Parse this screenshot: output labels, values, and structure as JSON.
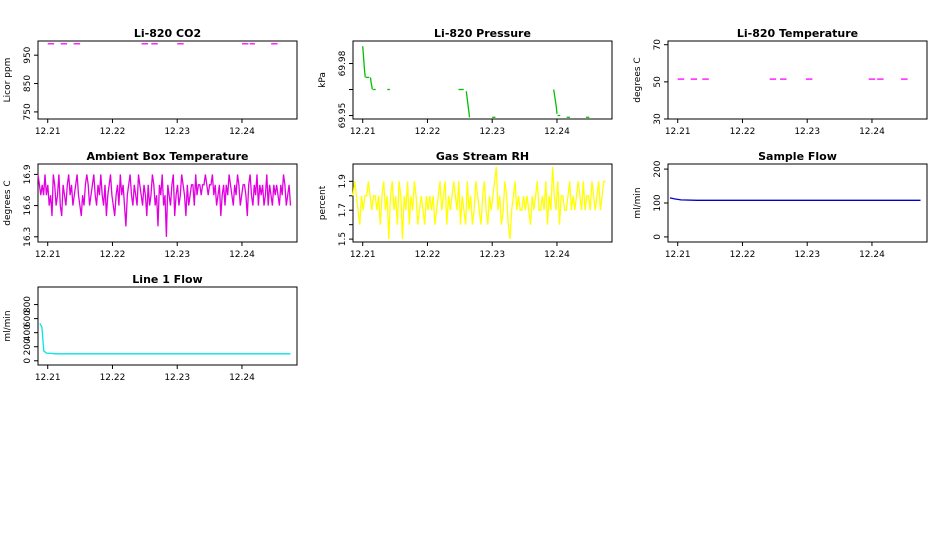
{
  "chart_data": [
    {
      "type": "line",
      "title": "Li-820 CO2",
      "ylabel": "Licor ppm",
      "ylim": [
        725,
        1000
      ],
      "yticks": [
        750,
        850,
        950
      ],
      "xlim": [
        12.2085,
        12.2485
      ],
      "xticks": [
        "12.21",
        "12.22",
        "12.23",
        "12.24"
      ],
      "color": "#ff00ff",
      "series": [
        {
          "segments": [
            [
              [
                12.21,
                990
              ],
              [
                12.211,
                990
              ]
            ],
            [
              [
                12.212,
                990
              ],
              [
                12.213,
                990
              ]
            ],
            [
              [
                12.214,
                990
              ],
              [
                12.215,
                990
              ]
            ],
            [
              [
                12.2245,
                990
              ],
              [
                12.2255,
                990
              ]
            ],
            [
              [
                12.226,
                990
              ],
              [
                12.227,
                990
              ]
            ],
            [
              [
                12.23,
                990
              ],
              [
                12.231,
                990
              ]
            ],
            [
              [
                12.24,
                990
              ],
              [
                12.241,
                990
              ]
            ],
            [
              [
                12.2412,
                990
              ],
              [
                12.242,
                990
              ]
            ],
            [
              [
                12.2445,
                990
              ],
              [
                12.2455,
                990
              ]
            ]
          ]
        }
      ]
    },
    {
      "type": "line",
      "title": "Li-820 Pressure",
      "ylabel": "kPa",
      "ylim": [
        69.948,
        69.993
      ],
      "yticks": [
        69.95,
        69.98
      ],
      "ytick_labels": [
        "69.95",
        "69.98"
      ],
      "mid_tick": 69.965,
      "mid_tick_label": "",
      "xlim": [
        12.2085,
        12.2485
      ],
      "xticks": [
        "12.21",
        "12.22",
        "12.23",
        "12.24"
      ],
      "color": "#00c000",
      "series": [
        {
          "segments": [
            [
              [
                12.21,
                69.99
              ],
              [
                12.2101,
                69.985
              ],
              [
                12.2102,
                69.98
              ],
              [
                12.2103,
                69.975
              ],
              [
                12.2104,
                69.972
              ]
            ],
            [
              [
                12.2105,
                69.972
              ],
              [
                12.211,
                69.972
              ]
            ],
            [
              [
                12.2112,
                69.972
              ],
              [
                12.2113,
                69.969
              ],
              [
                12.2114,
                69.967
              ],
              [
                12.2115,
                69.965
              ]
            ],
            [
              [
                12.2116,
                69.965
              ],
              [
                12.212,
                69.965
              ]
            ],
            [
              [
                12.2138,
                69.965
              ],
              [
                12.2142,
                69.965
              ]
            ],
            [
              [
                12.2248,
                69.965
              ],
              [
                12.2256,
                69.965
              ]
            ],
            [
              [
                12.226,
                69.964
              ],
              [
                12.2262,
                69.958
              ],
              [
                12.2264,
                69.952
              ],
              [
                12.2265,
                69.949
              ]
            ],
            [
              [
                12.23,
                69.949
              ],
              [
                12.2305,
                69.949
              ]
            ],
            [
              [
                12.2395,
                69.965
              ],
              [
                12.2397,
                69.96
              ],
              [
                12.2399,
                69.955
              ],
              [
                12.24,
                69.951
              ]
            ],
            [
              [
                12.2401,
                69.95
              ],
              [
                12.2405,
                69.95
              ]
            ],
            [
              [
                12.2415,
                69.949
              ],
              [
                12.242,
                69.949
              ]
            ],
            [
              [
                12.2445,
                69.949
              ],
              [
                12.245,
                69.949
              ]
            ]
          ]
        }
      ]
    },
    {
      "type": "line",
      "title": "Li-820 Temperature",
      "ylabel": "degrees C",
      "ylim": [
        30,
        72
      ],
      "yticks": [
        30,
        50,
        70
      ],
      "xlim": [
        12.2085,
        12.2485
      ],
      "xticks": [
        "12.21",
        "12.22",
        "12.23",
        "12.24"
      ],
      "color": "#ff00ff",
      "series": [
        {
          "segments": [
            [
              [
                12.21,
                51.5
              ],
              [
                12.211,
                51.5
              ]
            ],
            [
              [
                12.212,
                51.5
              ],
              [
                12.213,
                51.5
              ]
            ],
            [
              [
                12.2138,
                51.5
              ],
              [
                12.2148,
                51.5
              ]
            ],
            [
              [
                12.2242,
                51.5
              ],
              [
                12.2252,
                51.5
              ]
            ],
            [
              [
                12.2258,
                51.5
              ],
              [
                12.2268,
                51.5
              ]
            ],
            [
              [
                12.2298,
                51.5
              ],
              [
                12.2308,
                51.5
              ]
            ],
            [
              [
                12.2395,
                51.5
              ],
              [
                12.2405,
                51.5
              ]
            ],
            [
              [
                12.2408,
                51.5
              ],
              [
                12.2418,
                51.5
              ]
            ],
            [
              [
                12.2445,
                51.5
              ],
              [
                12.2455,
                51.5
              ]
            ]
          ]
        }
      ]
    },
    {
      "type": "line",
      "title": "Ambient Box Temperature",
      "ylabel": "degrees C",
      "ylim": [
        16.25,
        17.0
      ],
      "yticks": [
        16.3,
        16.6,
        16.9
      ],
      "xlim": [
        12.2085,
        12.2485
      ],
      "xticks": [
        "12.21",
        "12.22",
        "12.23",
        "12.24"
      ],
      "color": "#e000e0",
      "x_start": 12.2085,
      "x_end": 12.2475,
      "series": [
        {
          "values": [
            16.9,
            16.8,
            16.7,
            16.8,
            16.7,
            16.9,
            16.7,
            16.8,
            16.6,
            16.7,
            16.5,
            16.9,
            16.8,
            16.6,
            16.7,
            16.9,
            16.6,
            16.5,
            16.8,
            16.7,
            16.6,
            16.8,
            16.9,
            16.7,
            16.8,
            16.6,
            16.7,
            16.8,
            16.9,
            16.7,
            16.6,
            16.5,
            16.7,
            16.6,
            16.8,
            16.9,
            16.8,
            16.6,
            16.7,
            16.8,
            16.9,
            16.7,
            16.6,
            16.8,
            16.7,
            16.9,
            16.7,
            16.6,
            16.8,
            16.5,
            16.7,
            16.8,
            16.9,
            16.7,
            16.6,
            16.5,
            16.7,
            16.8,
            16.6,
            16.9,
            16.7,
            16.8,
            16.6,
            16.4,
            16.7,
            16.8,
            16.9,
            16.7,
            16.6,
            16.8,
            16.7,
            16.6,
            16.9,
            16.8,
            16.7,
            16.6,
            16.8,
            16.7,
            16.5,
            16.8,
            16.6,
            16.7,
            16.9,
            16.8,
            16.6,
            16.7,
            16.4,
            16.8,
            16.7,
            16.9,
            16.6,
            16.7,
            16.3,
            16.8,
            16.7,
            16.6,
            16.8,
            16.9,
            16.5,
            16.7,
            16.8,
            16.6,
            16.7,
            16.9,
            16.8,
            16.7,
            16.5,
            16.8,
            16.6,
            16.7,
            16.8,
            16.8,
            16.6,
            16.9,
            16.7,
            16.8,
            16.8,
            16.7,
            16.8,
            16.8,
            16.9,
            16.8,
            16.7,
            16.8,
            16.8,
            16.9,
            16.7,
            16.8,
            16.6,
            16.7,
            16.8,
            16.5,
            16.7,
            16.8,
            16.6,
            16.8,
            16.7,
            16.9,
            16.8,
            16.7,
            16.6,
            16.8,
            16.7,
            16.9,
            16.8,
            16.6,
            16.7,
            16.8,
            16.8,
            16.7,
            16.5,
            16.8,
            16.9,
            16.7,
            16.6,
            16.8,
            16.7,
            16.9,
            16.6,
            16.8,
            16.7,
            16.8,
            16.6,
            16.7,
            16.9,
            16.6,
            16.8,
            16.7,
            16.6,
            16.8,
            16.7,
            16.8,
            16.7,
            16.6,
            16.8,
            16.7,
            16.9,
            16.8,
            16.6,
            16.7,
            16.8,
            16.6
          ]
        }
      ]
    },
    {
      "type": "line",
      "title": "Gas Stream RH",
      "ylabel": "percent",
      "ylim": [
        1.48,
        2.02
      ],
      "yticks": [
        1.5,
        1.7,
        1.9
      ],
      "mid_ticks": [
        1.6,
        1.8
      ],
      "xlim": [
        12.2085,
        12.2485
      ],
      "xticks": [
        "12.21",
        "12.22",
        "12.23",
        "12.24"
      ],
      "color": "#ffff00",
      "x_start": 12.2085,
      "x_end": 12.2475,
      "series": [
        {
          "values": [
            1.8,
            1.9,
            1.8,
            1.7,
            1.6,
            1.8,
            1.7,
            1.8,
            1.8,
            1.9,
            1.8,
            1.7,
            1.8,
            1.8,
            1.7,
            1.8,
            1.6,
            1.8,
            1.9,
            1.7,
            1.8,
            1.5,
            1.8,
            1.9,
            1.7,
            1.8,
            1.6,
            1.9,
            1.8,
            1.5,
            1.8,
            1.7,
            1.9,
            1.6,
            1.8,
            1.7,
            1.9,
            1.8,
            1.6,
            1.7,
            1.8,
            1.7,
            1.6,
            1.8,
            1.7,
            1.8,
            1.7,
            1.8,
            1.6,
            1.7,
            1.8,
            1.9,
            1.7,
            1.8,
            1.9,
            1.6,
            1.8,
            1.7,
            1.8,
            1.9,
            1.8,
            1.7,
            1.9,
            1.6,
            1.8,
            1.7,
            1.6,
            1.9,
            1.7,
            1.8,
            1.6,
            1.7,
            1.9,
            1.8,
            1.7,
            1.6,
            1.8,
            1.9,
            1.7,
            1.6,
            1.8,
            1.7,
            1.8,
            1.9,
            2.0,
            1.7,
            1.8,
            1.6,
            1.7,
            1.9,
            1.8,
            1.6,
            1.5,
            1.7,
            1.8,
            1.9,
            1.7,
            1.8,
            1.7,
            1.7,
            1.8,
            1.7,
            1.8,
            1.7,
            1.6,
            1.8,
            1.7,
            1.8,
            1.9,
            1.7,
            1.7,
            1.8,
            1.7,
            1.9,
            1.6,
            1.8,
            1.7,
            2.0,
            1.8,
            1.7,
            1.9,
            1.6,
            1.8,
            1.8,
            1.7,
            1.7,
            1.8,
            1.9,
            1.7,
            1.8,
            1.7,
            1.8,
            1.9,
            1.8,
            1.7,
            1.9,
            1.7,
            1.8,
            1.8,
            1.7,
            1.9,
            1.8,
            1.7,
            1.8,
            1.9,
            1.7,
            1.8,
            1.9,
            1.9
          ]
        }
      ]
    },
    {
      "type": "line",
      "title": "Sample Flow",
      "ylabel": "ml/min",
      "ylim": [
        -15,
        215
      ],
      "yticks": [
        0,
        100,
        200
      ],
      "xlim": [
        12.2085,
        12.2485
      ],
      "xticks": [
        "12.21",
        "12.22",
        "12.23",
        "12.24"
      ],
      "color": "#0000cc",
      "series": [
        {
          "points": [
            [
              12.2088,
              115
            ],
            [
              12.2095,
              112
            ],
            [
              12.2105,
              109
            ],
            [
              12.213,
              108
            ],
            [
              12.22,
              108
            ],
            [
              12.23,
              108
            ],
            [
              12.24,
              108
            ],
            [
              12.2475,
              108
            ]
          ]
        }
      ]
    },
    {
      "type": "line",
      "title": "Line 1 Flow",
      "ylabel": "ml/min",
      "ylim": [
        -60,
        1050
      ],
      "yticks": [
        0,
        200,
        400,
        600,
        800
      ],
      "xlim": [
        12.2085,
        12.2485
      ],
      "xticks": [
        "12.21",
        "12.22",
        "12.23",
        "12.24"
      ],
      "color": "#00e5e5",
      "series": [
        {
          "points": [
            [
              12.2088,
              530
            ],
            [
              12.2091,
              480
            ],
            [
              12.2094,
              140
            ],
            [
              12.2098,
              110
            ],
            [
              12.2105,
              105
            ],
            [
              12.2112,
              100
            ],
            [
              12.22,
              100
            ],
            [
              12.23,
              100
            ],
            [
              12.24,
              100
            ],
            [
              12.2475,
              100
            ]
          ]
        }
      ]
    }
  ]
}
